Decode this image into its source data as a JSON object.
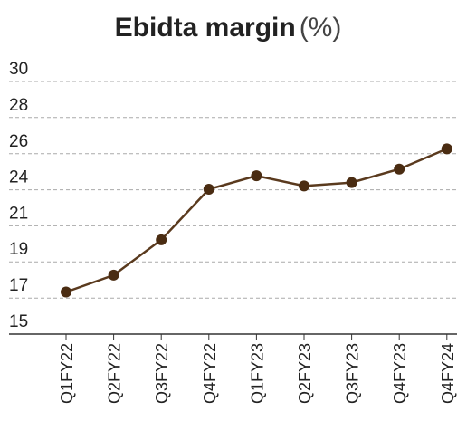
{
  "chart_data": {
    "type": "line",
    "title": "Ebidta margin",
    "subtitle": "(%)",
    "categories": [
      "Q1FY22",
      "Q2FY22",
      "Q3FY22",
      "Q4FY22",
      "Q1FY23",
      "Q2FY23",
      "Q3FY23",
      "Q4FY23",
      "Q4FY24"
    ],
    "series": [
      {
        "name": "Ebidta margin",
        "color": "#5a3a1e",
        "values": [
          17.5,
          18.5,
          20.6,
          23.6,
          24.4,
          23.8,
          24.0,
          24.8,
          26.0
        ]
      }
    ],
    "ylim": [
      15,
      30
    ],
    "yticks": [
      15,
      {
        "value": 17.14,
        "label": "17"
      },
      {
        "value": 19.29,
        "label": "19"
      },
      {
        "value": 21.43,
        "label": "21"
      },
      {
        "value": 23.57,
        "label": "24"
      },
      {
        "value": 25.71,
        "label": "26"
      },
      {
        "value": 27.86,
        "label": "28"
      },
      30
    ],
    "grid": true
  }
}
